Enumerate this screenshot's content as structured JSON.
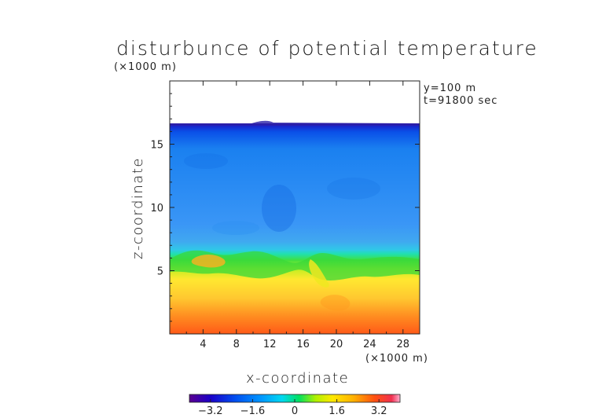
{
  "chart_data": {
    "type": "heatmap",
    "title": "disturbunce of potential temperature",
    "units_label": "(×1000 m)",
    "annotations": [
      "y=100 m",
      "t=91800 sec"
    ],
    "xlabel": "x-coordinate",
    "ylabel": "z-coordinate",
    "x_unit_label": "(×1000 m)",
    "xlim": [
      0,
      30
    ],
    "ylim": [
      0,
      20
    ],
    "x_ticks": [
      4,
      8,
      12,
      16,
      20,
      24,
      28
    ],
    "x_tick_labels": [
      "4",
      "8",
      "12",
      "16",
      "20",
      "24",
      "28"
    ],
    "y_ticks": [
      5,
      10,
      15
    ],
    "y_tick_labels": [
      "5",
      "10",
      "15"
    ],
    "field_top_z": 16.7,
    "colorbar": {
      "range": [
        -4,
        4
      ],
      "tick_values": [
        -3.2,
        -1.6,
        0,
        1.6,
        3.2
      ],
      "tick_labels": [
        "−3.2",
        "−1.6",
        "0",
        "1.6",
        "3.2"
      ]
    },
    "layers": [
      {
        "z_range": [
          16.3,
          16.7
        ],
        "value": -3.4
      },
      {
        "z_range": [
          7.5,
          16.3
        ],
        "value": -2.0
      },
      {
        "z_range": [
          5.8,
          7.5
        ],
        "value": -0.6
      },
      {
        "z_range": [
          4.5,
          5.8
        ],
        "value": 0.3
      },
      {
        "z_range": [
          2.0,
          4.5
        ],
        "value": 1.6
      },
      {
        "z_range": [
          0,
          2.0
        ],
        "value": 2.6
      }
    ]
  }
}
